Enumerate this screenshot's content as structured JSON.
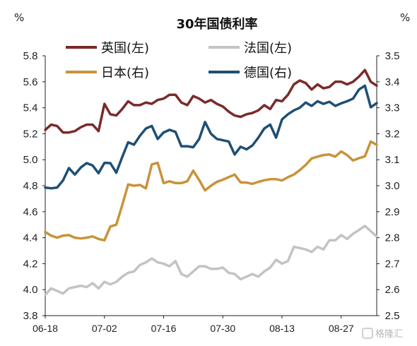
{
  "chart_data": {
    "type": "line",
    "title": "30年国债利率",
    "left_unit": "%",
    "right_unit": "%",
    "ylim_left": [
      3.8,
      5.8
    ],
    "ylim_right": [
      2.5,
      3.5
    ],
    "yticks_left": [
      "3.8",
      "4.0",
      "4.2",
      "4.4",
      "4.6",
      "4.8",
      "5.0",
      "5.2",
      "5.4",
      "5.6",
      "5.8"
    ],
    "yticks_right": [
      "2.5",
      "2.6",
      "2.7",
      "2.8",
      "2.9",
      "3.0",
      "3.1",
      "3.2",
      "3.3",
      "3.4",
      "3.5"
    ],
    "x_ticks": [
      "06-18",
      "07-02",
      "07-16",
      "07-30",
      "08-13",
      "08-27"
    ],
    "grid": false,
    "legend_placement": "top",
    "series": [
      {
        "name": "英国(左)",
        "axis": "left",
        "color": "#7a2a2a",
        "values": [
          5.23,
          5.27,
          5.26,
          5.21,
          5.21,
          5.22,
          5.25,
          5.27,
          5.27,
          5.22,
          5.43,
          5.35,
          5.34,
          5.39,
          5.45,
          5.42,
          5.42,
          5.44,
          5.43,
          5.46,
          5.47,
          5.5,
          5.5,
          5.44,
          5.42,
          5.49,
          5.47,
          5.44,
          5.46,
          5.43,
          5.41,
          5.37,
          5.34,
          5.33,
          5.35,
          5.36,
          5.38,
          5.42,
          5.39,
          5.46,
          5.45,
          5.5,
          5.58,
          5.61,
          5.59,
          5.54,
          5.58,
          5.55,
          5.56,
          5.6,
          5.6,
          5.58,
          5.6,
          5.64,
          5.69,
          5.6,
          5.57
        ]
      },
      {
        "name": "法国(左)",
        "axis": "left",
        "color": "#c3c3c3",
        "values": [
          3.96,
          4.01,
          3.99,
          3.97,
          4.01,
          4.02,
          4.03,
          4.02,
          4.05,
          4.01,
          4.06,
          4.04,
          4.06,
          4.1,
          4.13,
          4.14,
          4.19,
          4.21,
          4.24,
          4.21,
          4.2,
          4.18,
          4.22,
          4.12,
          4.1,
          4.14,
          4.18,
          4.18,
          4.16,
          4.16,
          4.17,
          4.13,
          4.12,
          4.08,
          4.1,
          4.12,
          4.1,
          4.14,
          4.17,
          4.23,
          4.2,
          4.22,
          4.33,
          4.32,
          4.31,
          4.29,
          4.33,
          4.31,
          4.38,
          4.38,
          4.42,
          4.39,
          4.43,
          4.46,
          4.49,
          4.45,
          4.41
        ]
      },
      {
        "name": "日本(右)",
        "axis": "right",
        "color": "#c8933a",
        "values": [
          2.822,
          2.808,
          2.8,
          2.808,
          2.81,
          2.8,
          2.797,
          2.8,
          2.805,
          2.795,
          2.79,
          2.843,
          2.85,
          2.925,
          3.005,
          3.0,
          3.003,
          2.99,
          3.082,
          3.088,
          3.01,
          3.017,
          3.01,
          3.01,
          3.017,
          3.058,
          3.022,
          2.982,
          3.0,
          3.015,
          3.023,
          3.033,
          3.043,
          3.013,
          3.012,
          3.007,
          3.015,
          3.021,
          3.025,
          3.025,
          3.02,
          3.033,
          3.043,
          3.06,
          3.08,
          3.105,
          3.112,
          3.118,
          3.12,
          3.112,
          3.132,
          3.118,
          3.097,
          3.106,
          3.113,
          3.17,
          3.157
        ]
      },
      {
        "name": "德国(右)",
        "axis": "right",
        "color": "#1f4f74",
        "values": [
          2.993,
          2.99,
          2.993,
          3.02,
          3.068,
          3.043,
          3.07,
          3.087,
          3.078,
          3.048,
          3.088,
          3.087,
          3.05,
          3.11,
          3.167,
          3.158,
          3.192,
          3.22,
          3.23,
          3.18,
          3.205,
          3.215,
          3.207,
          3.152,
          3.152,
          3.148,
          3.18,
          3.245,
          3.2,
          3.18,
          3.175,
          3.17,
          3.12,
          3.15,
          3.14,
          3.155,
          3.185,
          3.22,
          3.235,
          3.185,
          3.255,
          3.275,
          3.29,
          3.3,
          3.32,
          3.307,
          3.325,
          3.315,
          3.323,
          3.307,
          3.317,
          3.325,
          3.335,
          3.37,
          3.385,
          3.302,
          3.318
        ]
      }
    ]
  },
  "watermark": {
    "text": "格隆汇"
  }
}
